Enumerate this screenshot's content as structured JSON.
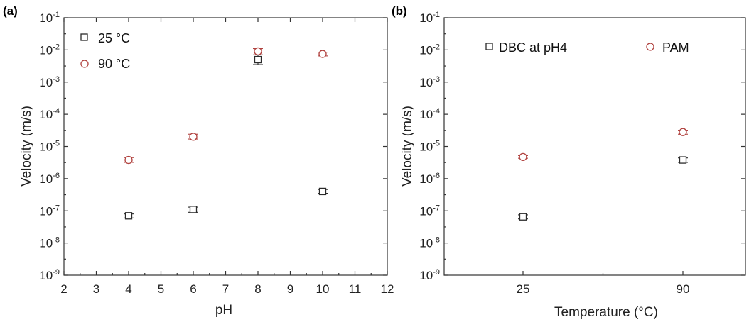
{
  "chart_data": [
    {
      "panel_label": "(a)",
      "type": "scatter",
      "xlabel": "pH",
      "ylabel": "Velocity (m/s)",
      "xlim": [
        2,
        12
      ],
      "ylim": [
        1e-09,
        0.1
      ],
      "yscale": "log",
      "x_ticks": [
        "2",
        "3",
        "4",
        "5",
        "6",
        "7",
        "8",
        "9",
        "10",
        "11",
        "12"
      ],
      "y_ticks": [
        {
          "base": "10",
          "exp": "-9"
        },
        {
          "base": "10",
          "exp": "-8"
        },
        {
          "base": "10",
          "exp": "-7"
        },
        {
          "base": "10",
          "exp": "-6"
        },
        {
          "base": "10",
          "exp": "-5"
        },
        {
          "base": "10",
          "exp": "-4"
        },
        {
          "base": "10",
          "exp": "-3"
        },
        {
          "base": "10",
          "exp": "-2"
        },
        {
          "base": "10",
          "exp": "-1"
        }
      ],
      "legend_position": "top-left",
      "series": [
        {
          "name": "25 °C",
          "marker": "square",
          "color": "#2b2b2b",
          "points": [
            {
              "x": 4,
              "y": 7e-08,
              "lo": 6e-08,
              "hi": 8e-08
            },
            {
              "x": 6,
              "y": 1.1e-07,
              "lo": 9e-08,
              "hi": 1.3e-07
            },
            {
              "x": 8,
              "y": 0.005,
              "lo": 0.0035,
              "hi": 0.007
            },
            {
              "x": 10,
              "y": 4e-07,
              "lo": 3.5e-07,
              "hi": 4.6e-07
            }
          ]
        },
        {
          "name": "90 °C",
          "marker": "circle",
          "color": "#b0413e",
          "points": [
            {
              "x": 4,
              "y": 3.8e-06,
              "lo": 3.2e-06,
              "hi": 4.5e-06
            },
            {
              "x": 6,
              "y": 2e-05,
              "lo": 1.7e-05,
              "hi": 2.4e-05
            },
            {
              "x": 8,
              "y": 0.009,
              "lo": 0.007,
              "hi": 0.011
            },
            {
              "x": 10,
              "y": 0.0075,
              "lo": 0.0065,
              "hi": 0.0085
            }
          ]
        }
      ]
    },
    {
      "panel_label": "(b)",
      "type": "scatter",
      "xlabel": "Temperature (°C)",
      "ylabel": "Velocity (m/s)",
      "categories": [
        "25",
        "90"
      ],
      "ylim": [
        1e-09,
        0.1
      ],
      "yscale": "log",
      "y_ticks": [
        {
          "base": "10",
          "exp": "-9"
        },
        {
          "base": "10",
          "exp": "-8"
        },
        {
          "base": "10",
          "exp": "-7"
        },
        {
          "base": "10",
          "exp": "-6"
        },
        {
          "base": "10",
          "exp": "-5"
        },
        {
          "base": "10",
          "exp": "-4"
        },
        {
          "base": "10",
          "exp": "-3"
        },
        {
          "base": "10",
          "exp": "-2"
        },
        {
          "base": "10",
          "exp": "-1"
        }
      ],
      "legend_position": "top",
      "series": [
        {
          "name": "DBC at pH4",
          "marker": "square",
          "color": "#2b2b2b",
          "points": [
            {
              "x": "25",
              "y": 6.5e-08,
              "lo": 5.6e-08,
              "hi": 7.5e-08
            },
            {
              "x": "90",
              "y": 3.8e-06,
              "lo": 3.2e-06,
              "hi": 4.4e-06
            }
          ]
        },
        {
          "name": "PAM",
          "marker": "circle",
          "color": "#b0413e",
          "points": [
            {
              "x": "25",
              "y": 4.7e-06,
              "lo": 4.3e-06,
              "hi": 5.2e-06
            },
            {
              "x": "90",
              "y": 2.8e-05,
              "lo": 2.4e-05,
              "hi": 3.2e-05
            }
          ]
        }
      ]
    }
  ]
}
